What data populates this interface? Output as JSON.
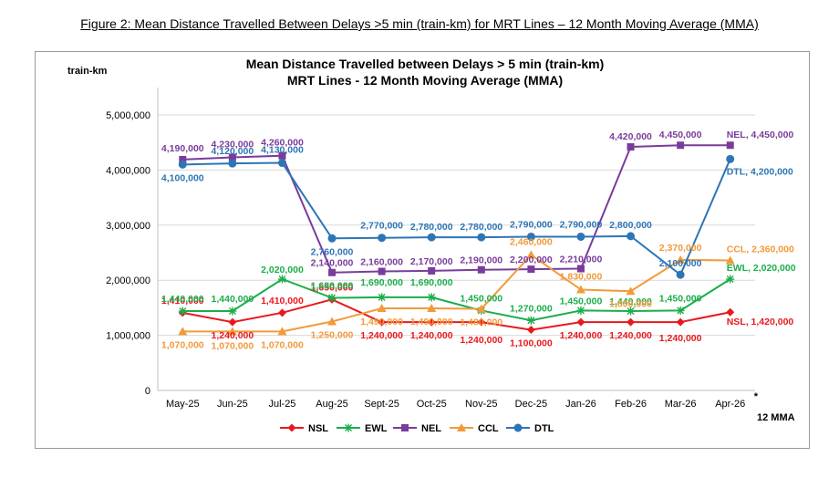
{
  "figure_caption": "Figure 2: Mean Distance Travelled Between Delays >5 min (train-km) for MRT Lines – 12 Month Moving Average (MMA)",
  "chart_data": {
    "type": "line",
    "title": "Mean Distance Travelled between Delays > 5 min (train-km)",
    "subtitle": "MRT Lines - 12 Month Moving Average (MMA)",
    "ylabel": "train-km",
    "xlabel": "12 MMA",
    "categories": [
      "May-25",
      "Jun-25",
      "Jul-25",
      "Aug-25",
      "Sept-25",
      "Oct-25",
      "Nov-25",
      "Dec-25",
      "Jan-26",
      "Feb-26",
      "Mar-26",
      "Apr-26"
    ],
    "last_category_note": "*",
    "ylim": [
      0,
      5000000
    ],
    "yticks": [
      0,
      1000000,
      2000000,
      3000000,
      4000000,
      5000000
    ],
    "ytick_labels": [
      "0",
      "1,000,000",
      "2,000,000",
      "3,000,000",
      "4,000,000",
      "5,000,000"
    ],
    "grid": true,
    "legend_position": "bottom",
    "series": [
      {
        "name": "NSL",
        "color": "#e8191e",
        "marker": "diamond",
        "values": [
          1410000,
          1240000,
          1410000,
          1650000,
          1240000,
          1240000,
          1240000,
          1100000,
          1240000,
          1240000,
          1240000,
          1420000
        ],
        "labels": [
          "1,410,000",
          "1,240,000",
          "1,410,000",
          "1,650,000",
          "1,240,000",
          "1,240,000",
          "1,240,000",
          "1,100,000",
          "1,240,000",
          "1,240,000",
          "1,240,000",
          "NSL, 1,420,000"
        ]
      },
      {
        "name": "EWL",
        "color": "#1aae4a",
        "marker": "star",
        "values": [
          1440000,
          1440000,
          2020000,
          1680000,
          1690000,
          1690000,
          1450000,
          1270000,
          1450000,
          1440000,
          1450000,
          2020000
        ],
        "labels": [
          "1,440,000",
          "1,440,000",
          "2,020,000",
          "1,680,000",
          "1,690,000",
          "1,690,000",
          "1,450,000",
          "1,270,000",
          "1,450,000",
          "1,440,000",
          "1,450,000",
          "EWL, 2,020,000"
        ]
      },
      {
        "name": "NEL",
        "color": "#7a3c9c",
        "marker": "square",
        "values": [
          4190000,
          4230000,
          4260000,
          2140000,
          2160000,
          2170000,
          2190000,
          2200000,
          2210000,
          4420000,
          4450000,
          4450000
        ],
        "labels": [
          "4,190,000",
          "4,230,000",
          "4,260,000",
          "2,140,000",
          "2,160,000",
          "2,170,000",
          "2,190,000",
          "2,200,000",
          "2,210,000",
          "4,420,000",
          "4,450,000",
          "NEL, 4,450,000"
        ]
      },
      {
        "name": "CCL",
        "color": "#f29a3a",
        "marker": "triangle",
        "values": [
          1070000,
          1070000,
          1070000,
          1250000,
          1490000,
          1490000,
          1480000,
          2460000,
          1830000,
          1800000,
          2370000,
          2360000
        ],
        "labels": [
          "1,070,000",
          "1,070,000",
          "1,070,000",
          "1,250,000",
          "1,490,000",
          "1,490,000",
          "1,480,000",
          "2,460,000",
          "1,830,000",
          "1,800,000",
          "2,370,000",
          "CCL, 2,360,000"
        ]
      },
      {
        "name": "DTL",
        "color": "#2e75b6",
        "marker": "circle",
        "values": [
          4100000,
          4120000,
          4130000,
          2760000,
          2770000,
          2780000,
          2780000,
          2790000,
          2790000,
          2800000,
          2100000,
          4200000
        ],
        "labels": [
          "4,100,000",
          "4,120,000",
          "4,130,000",
          "2,760,000",
          "2,770,000",
          "2,780,000",
          "2,780,000",
          "2,790,000",
          "2,790,000",
          "2,800,000",
          "2,100,000",
          "DTL, 4,200,000"
        ]
      }
    ]
  }
}
